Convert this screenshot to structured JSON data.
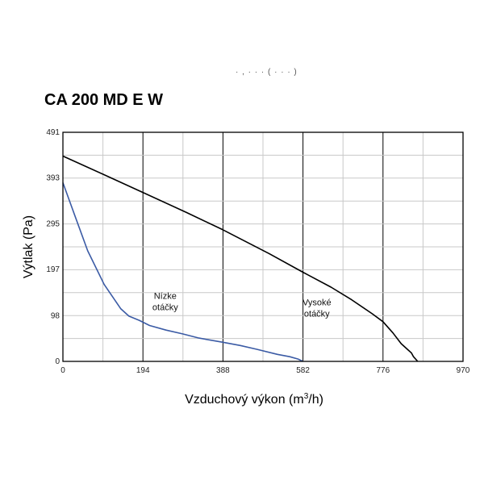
{
  "top_fragment": "· , · · · ( · · · )",
  "chart_data": {
    "type": "line",
    "title": "CA 200 MD E W",
    "xlabel": "Vzduchový výkon (m³/h)",
    "xlabel_main": "Vzduchový výkon (m",
    "xlabel_sup": "3",
    "xlabel_end": "/h)",
    "ylabel": "Výtlak (Pa)",
    "xlim": [
      0,
      970
    ],
    "ylim": [
      0,
      491
    ],
    "x_ticks": [
      0,
      194,
      388,
      582,
      776,
      970
    ],
    "y_ticks": [
      0,
      98,
      197,
      295,
      393,
      491
    ],
    "x_tick_labels": [
      "0",
      "194",
      "388",
      "582",
      "776",
      "970"
    ],
    "y_tick_labels": [
      "0",
      "98",
      "197",
      "295",
      "393",
      "491"
    ],
    "x_grid_step": 97,
    "y_grid_step": 49.1,
    "grid": true,
    "series": [
      {
        "name": "Vysoké otáčky",
        "label_line1": "Vysoké",
        "label_line2": "otáčky",
        "label_at": [
          600,
          108
        ],
        "color": "#000000",
        "x": [
          0,
          100,
          194,
          300,
          388,
          500,
          582,
          650,
          700,
          750,
          776,
          800,
          820,
          835,
          845,
          850,
          860
        ],
        "y": [
          440,
          400,
          362,
          319,
          282,
          231,
          191,
          159,
          132,
          102,
          85,
          61,
          38,
          26,
          18,
          10,
          0
        ]
      },
      {
        "name": "Nízke otáčky",
        "label_line1": "Nízke",
        "label_line2": "otáčky",
        "label_at": [
          248,
          122
        ],
        "color": "#3b5ba5",
        "x": [
          0,
          30,
          60,
          100,
          140,
          160,
          185,
          210,
          250,
          290,
          330,
          388,
          430,
          470,
          520,
          550,
          570,
          582
        ],
        "y": [
          383,
          310,
          237,
          165,
          113,
          97,
          88,
          77,
          67,
          59,
          50,
          41,
          34,
          26,
          15,
          10,
          5,
          0
        ]
      }
    ]
  }
}
